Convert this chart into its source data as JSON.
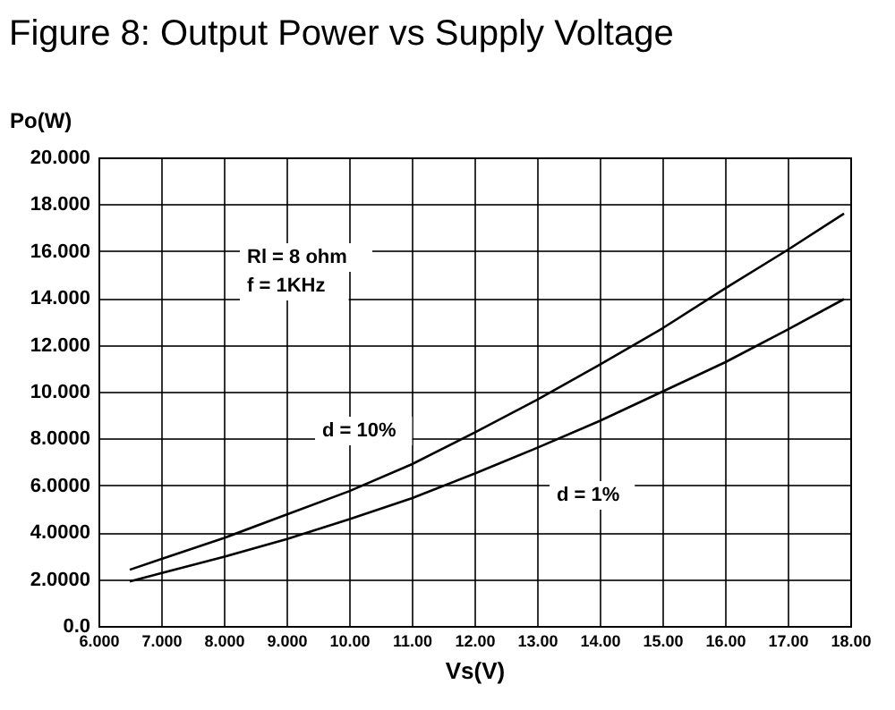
{
  "chart_data": {
    "type": "line",
    "title": "Figure 8: Output Power vs Supply Voltage",
    "xlabel": "Vs(V)",
    "ylabel": "Po(W)",
    "annotations": [
      "Rl = 8 ohm",
      "f = 1KHz",
      "d = 10%",
      "d = 1%"
    ],
    "x": [
      6.5,
      7,
      8,
      9,
      10,
      11,
      12,
      13,
      14,
      15,
      16,
      17,
      17.9
    ],
    "series": [
      {
        "color": "#000000",
        "values": [
          2.4,
          2.85,
          3.75,
          4.75,
          5.75,
          6.9,
          8.25,
          9.65,
          11.15,
          12.7,
          14.4,
          16.05,
          17.6
        ]
      },
      {
        "color": "#000000",
        "values": [
          1.9,
          2.25,
          2.95,
          3.7,
          4.55,
          5.45,
          6.5,
          7.6,
          8.75,
          10.0,
          11.25,
          12.65,
          13.95
        ]
      }
    ],
    "xlim": [
      6,
      18
    ],
    "ylim": [
      0,
      20
    ],
    "xticks": [
      {
        "value": 6,
        "label": "6.000"
      },
      {
        "value": 7,
        "label": "7.000"
      },
      {
        "value": 8,
        "label": "8.000"
      },
      {
        "value": 9,
        "label": "9.000"
      },
      {
        "value": 10,
        "label": "10.00"
      },
      {
        "value": 11,
        "label": "11.00"
      },
      {
        "value": 12,
        "label": "12.00"
      },
      {
        "value": 13,
        "label": "13.00"
      },
      {
        "value": 14,
        "label": "14.00"
      },
      {
        "value": 15,
        "label": "15.00"
      },
      {
        "value": 16,
        "label": "16.00"
      },
      {
        "value": 17,
        "label": "17.00"
      },
      {
        "value": 18,
        "label": "18.00"
      }
    ],
    "yticks": [
      {
        "value": 0,
        "label": "0.0"
      },
      {
        "value": 2,
        "label": "2.0000"
      },
      {
        "value": 4,
        "label": "4.0000"
      },
      {
        "value": 6,
        "label": "6.0000"
      },
      {
        "value": 8,
        "label": "8.0000"
      },
      {
        "value": 10,
        "label": "10.000"
      },
      {
        "value": 12,
        "label": "12.000"
      },
      {
        "value": 14,
        "label": "14.000"
      },
      {
        "value": 16,
        "label": "16.000"
      },
      {
        "value": 18,
        "label": "18.000"
      },
      {
        "value": 20,
        "label": "20.000"
      }
    ],
    "grid": true,
    "legend": false,
    "marker": "none",
    "line_style": "solid"
  }
}
